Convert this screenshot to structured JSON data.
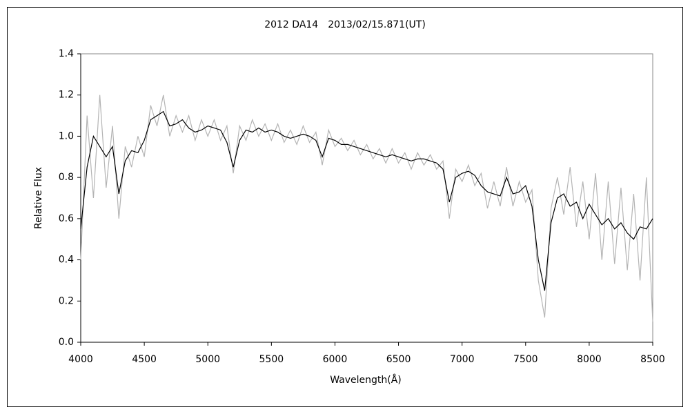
{
  "chart_data": {
    "type": "line",
    "title": "2012 DA14　2013/02/15.871(UT)",
    "x_label": "Wavelength(Å)",
    "y_label": "Relative Flux",
    "x": [
      4000,
      4050,
      4100,
      4150,
      4200,
      4250,
      4300,
      4350,
      4400,
      4450,
      4500,
      4550,
      4600,
      4650,
      4700,
      4750,
      4800,
      4850,
      4900,
      4950,
      5000,
      5050,
      5100,
      5150,
      5200,
      5250,
      5300,
      5350,
      5400,
      5450,
      5500,
      5550,
      5600,
      5650,
      5700,
      5750,
      5800,
      5850,
      5900,
      5950,
      6000,
      6050,
      6100,
      6150,
      6200,
      6250,
      6300,
      6350,
      6400,
      6450,
      6500,
      6550,
      6600,
      6650,
      6700,
      6750,
      6800,
      6850,
      6900,
      6950,
      7000,
      7050,
      7100,
      7150,
      7200,
      7250,
      7300,
      7350,
      7400,
      7450,
      7500,
      7550,
      7600,
      7650,
      7700,
      7750,
      7800,
      7850,
      7900,
      7950,
      8000,
      8050,
      8100,
      8150,
      8200,
      8250,
      8300,
      8350,
      8400,
      8450,
      8500
    ],
    "series": [
      {
        "color": "#b4b4b4",
        "values": [
          0.4,
          1.1,
          0.7,
          1.2,
          0.75,
          1.05,
          0.6,
          0.95,
          0.85,
          1.0,
          0.9,
          1.15,
          1.05,
          1.2,
          1.0,
          1.1,
          1.02,
          1.1,
          0.98,
          1.08,
          1.0,
          1.08,
          0.98,
          1.05,
          0.82,
          1.05,
          0.98,
          1.08,
          1.0,
          1.06,
          0.98,
          1.06,
          0.97,
          1.03,
          0.96,
          1.05,
          0.97,
          1.02,
          0.86,
          1.03,
          0.95,
          0.99,
          0.93,
          0.98,
          0.91,
          0.96,
          0.89,
          0.94,
          0.87,
          0.94,
          0.87,
          0.92,
          0.84,
          0.92,
          0.86,
          0.91,
          0.84,
          0.88,
          0.6,
          0.84,
          0.78,
          0.86,
          0.76,
          0.82,
          0.65,
          0.78,
          0.66,
          0.85,
          0.66,
          0.78,
          0.68,
          0.74,
          0.3,
          0.12,
          0.65,
          0.8,
          0.62,
          0.85,
          0.56,
          0.78,
          0.5,
          0.82,
          0.4,
          0.78,
          0.38,
          0.75,
          0.35,
          0.72,
          0.3,
          0.8,
          0.1
        ]
      },
      {
        "color": "#000000",
        "values": [
          0.55,
          0.85,
          1.0,
          0.95,
          0.9,
          0.95,
          0.72,
          0.88,
          0.93,
          0.92,
          0.98,
          1.08,
          1.1,
          1.12,
          1.05,
          1.06,
          1.08,
          1.04,
          1.02,
          1.03,
          1.05,
          1.04,
          1.03,
          0.97,
          0.85,
          0.98,
          1.03,
          1.02,
          1.04,
          1.02,
          1.03,
          1.02,
          1.0,
          0.99,
          1.0,
          1.01,
          1.0,
          0.98,
          0.9,
          0.99,
          0.98,
          0.96,
          0.96,
          0.95,
          0.94,
          0.93,
          0.92,
          0.91,
          0.9,
          0.91,
          0.9,
          0.89,
          0.88,
          0.89,
          0.89,
          0.88,
          0.87,
          0.84,
          0.68,
          0.8,
          0.82,
          0.83,
          0.81,
          0.76,
          0.73,
          0.72,
          0.71,
          0.8,
          0.72,
          0.73,
          0.76,
          0.66,
          0.4,
          0.25,
          0.58,
          0.7,
          0.72,
          0.66,
          0.68,
          0.6,
          0.67,
          0.62,
          0.57,
          0.6,
          0.55,
          0.58,
          0.53,
          0.5,
          0.56,
          0.55,
          0.6
        ]
      }
    ],
    "xlim": [
      4000,
      8500
    ],
    "xticks": [
      4000,
      4500,
      5000,
      5500,
      6000,
      6500,
      7000,
      7500,
      8000,
      8500
    ],
    "ylim": [
      0,
      1.4
    ],
    "yticks": [
      {
        "value": 0,
        "label": "0.0"
      },
      0.2,
      0.4,
      0.6,
      0.8,
      {
        "value": 1,
        "label": "1.0"
      },
      1.2,
      1.4
    ],
    "grid": false
  }
}
